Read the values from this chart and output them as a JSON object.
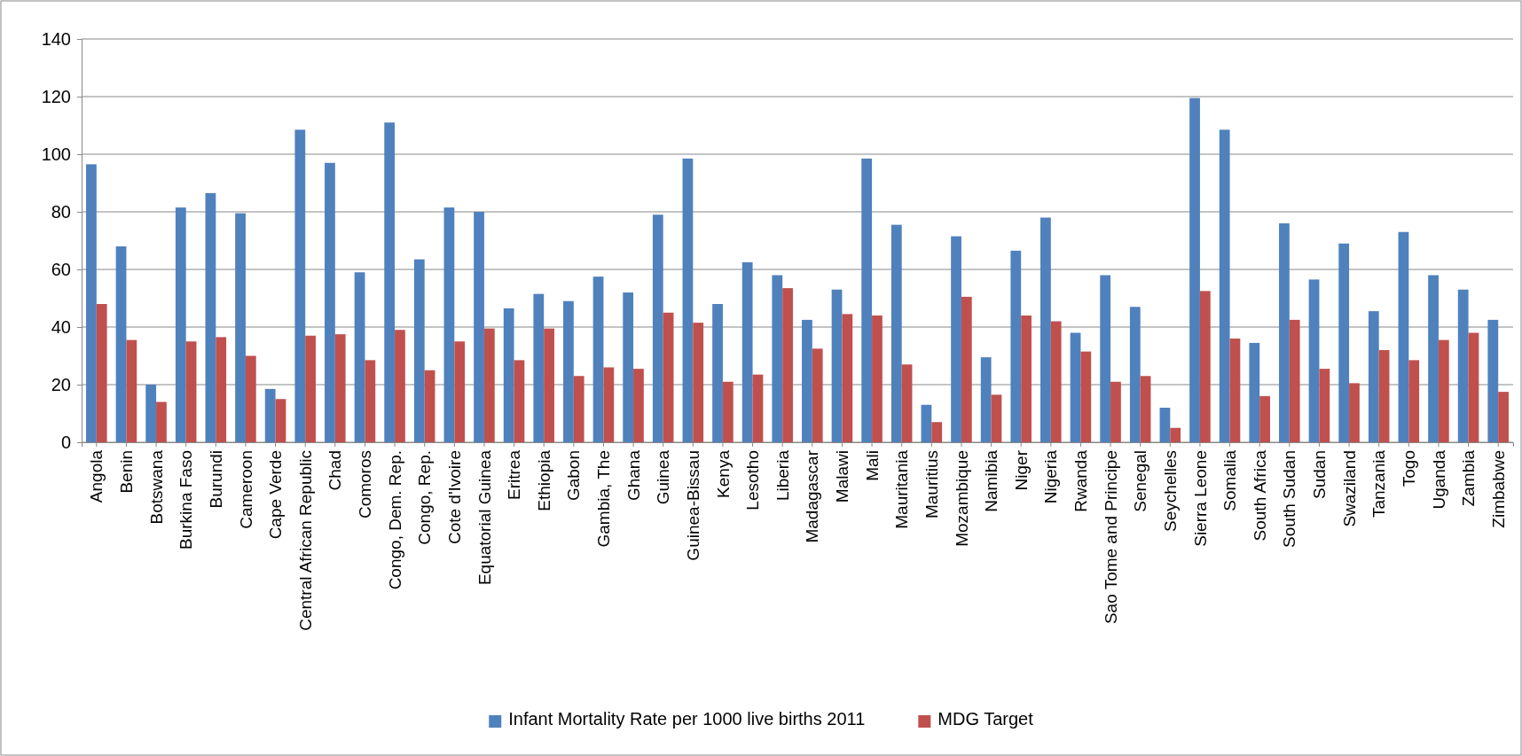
{
  "chart_data": {
    "type": "bar",
    "categories": [
      "Angola",
      "Benin",
      "Botswana",
      "Burkina Faso",
      "Burundi",
      "Cameroon",
      "Cape Verde",
      "Central African Republic",
      "Chad",
      "Comoros",
      "Congo, Dem. Rep.",
      "Congo, Rep.",
      "Cote d'Ivoire",
      "Equatorial Guinea",
      "Eritrea",
      "Ethiopia",
      "Gabon",
      "Gambia, The",
      "Ghana",
      "Guinea",
      "Guinea-Bissau",
      "Kenya",
      "Lesotho",
      "Liberia",
      "Madagascar",
      "Malawi",
      "Mali",
      "Mauritania",
      "Mauritius",
      "Mozambique",
      "Namibia",
      "Niger",
      "Nigeria",
      "Rwanda",
      "Sao Tome and Principe",
      "Senegal",
      "Seychelles",
      "Sierra Leone",
      "Somalia",
      "South Africa",
      "South Sudan",
      "Sudan",
      "Swaziland",
      "Tanzania",
      "Togo",
      "Uganda",
      "Zambia",
      "Zimbabwe"
    ],
    "series": [
      {
        "name": "Infant Mortality Rate per 1000 live births 2011",
        "color": "#4f81bd",
        "values": [
          96.5,
          68,
          20,
          81.5,
          86.5,
          79.5,
          18.5,
          108.5,
          97,
          59,
          111,
          63.5,
          81.5,
          80,
          46.5,
          51.5,
          49,
          57.5,
          52,
          79,
          98.5,
          48,
          62.5,
          58,
          42.5,
          53,
          98.5,
          75.5,
          13,
          71.5,
          29.5,
          66.5,
          78,
          38,
          58,
          47,
          12,
          119.5,
          108.5,
          34.5,
          76,
          56.5,
          69,
          45.5,
          73,
          58,
          53,
          42.5
        ]
      },
      {
        "name": "MDG Target",
        "color": "#c0504d",
        "values": [
          48,
          35.5,
          14,
          35,
          36.5,
          30,
          15,
          37,
          37.5,
          28.5,
          39,
          25,
          35,
          39.5,
          28.5,
          39.5,
          23,
          26,
          25.5,
          45,
          41.5,
          21,
          23.5,
          53.5,
          32.5,
          44.5,
          44,
          27,
          7,
          50.5,
          16.5,
          44,
          42,
          31.5,
          21,
          23,
          5,
          52.5,
          36,
          16,
          42.5,
          25.5,
          20.5,
          32,
          28.5,
          35.5,
          38,
          17.5
        ]
      }
    ],
    "ylim": [
      0,
      140
    ],
    "yticks": [
      0,
      20,
      40,
      60,
      80,
      100,
      120,
      140
    ],
    "grid": "y",
    "legend": "bottom"
  }
}
